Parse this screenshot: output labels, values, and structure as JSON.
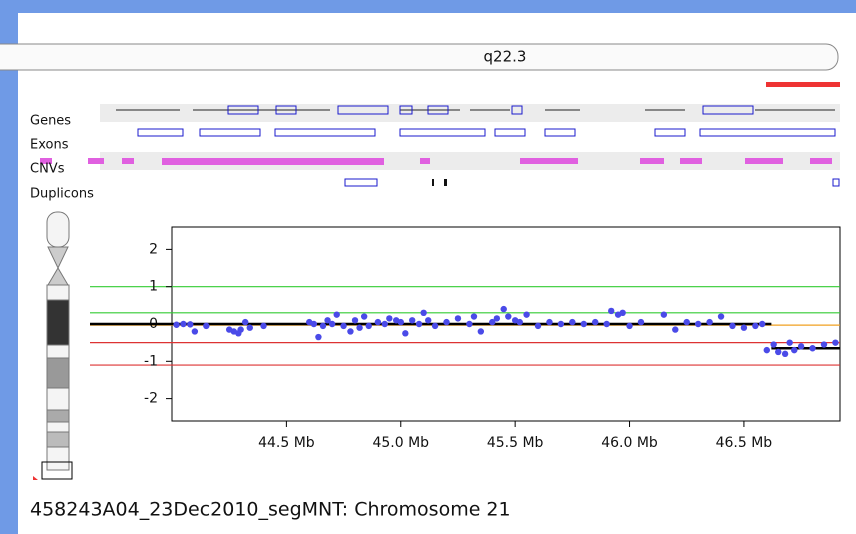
{
  "header": {
    "band": "q22.3"
  },
  "tracks": [
    "Genes",
    "Exons",
    "CNVs",
    "Duplicons"
  ],
  "caption": "458243A04_23Dec2010_segMNT: Chromosome 21",
  "chart_data": {
    "type": "scatter",
    "color": "#4a4ae8",
    "x": [
      44.02,
      44.05,
      44.08,
      44.1,
      44.15,
      44.25,
      44.27,
      44.29,
      44.3,
      44.32,
      44.34,
      44.4,
      44.6,
      44.62,
      44.64,
      44.66,
      44.68,
      44.7,
      44.72,
      44.75,
      44.78,
      44.8,
      44.82,
      44.84,
      44.86,
      44.9,
      44.93,
      44.95,
      44.98,
      45.0,
      45.02,
      45.05,
      45.08,
      45.1,
      45.12,
      45.15,
      45.2,
      45.25,
      45.3,
      45.32,
      45.35,
      45.4,
      45.42,
      45.45,
      45.47,
      45.5,
      45.52,
      45.55,
      45.6,
      45.65,
      45.7,
      45.75,
      45.8,
      45.85,
      45.9,
      45.92,
      45.95,
      45.97,
      46.0,
      46.05,
      46.15,
      46.2,
      46.25,
      46.3,
      46.35,
      46.4,
      46.45,
      46.5,
      46.55,
      46.58,
      46.6,
      46.63,
      46.65,
      46.68,
      46.7,
      46.72,
      46.75,
      46.8,
      46.85,
      46.9
    ],
    "values": [
      -0.02,
      0.0,
      -0.01,
      -0.2,
      -0.05,
      -0.15,
      -0.2,
      -0.25,
      -0.15,
      0.05,
      -0.1,
      -0.05,
      0.05,
      0.0,
      -0.35,
      -0.05,
      0.1,
      0.0,
      0.25,
      -0.05,
      -0.2,
      0.1,
      -0.1,
      0.2,
      -0.05,
      0.05,
      0.0,
      0.15,
      0.1,
      0.05,
      -0.25,
      0.1,
      0.0,
      0.3,
      0.1,
      -0.05,
      0.05,
      0.15,
      0.0,
      0.2,
      -0.2,
      0.05,
      0.15,
      0.4,
      0.2,
      0.1,
      0.05,
      0.25,
      -0.05,
      0.05,
      0.0,
      0.05,
      0.0,
      0.05,
      0.0,
      0.35,
      0.25,
      0.3,
      -0.05,
      0.05,
      0.25,
      -0.15,
      0.05,
      0.0,
      0.05,
      0.2,
      -0.05,
      -0.1,
      -0.05,
      0.0,
      -0.7,
      -0.55,
      -0.75,
      -0.8,
      -0.5,
      -0.7,
      -0.6,
      -0.65,
      -0.55,
      -0.5
    ],
    "xlim": [
      44.0,
      46.92
    ],
    "ylim": [
      -2.6,
      2.6
    ],
    "xticks": [
      {
        "value": 44.5,
        "label": "44.5 Mb"
      },
      {
        "value": 45.0,
        "label": "45.0 Mb"
      },
      {
        "value": 45.5,
        "label": "45.5 Mb"
      },
      {
        "value": 46.0,
        "label": "46.0 Mb"
      },
      {
        "value": 46.5,
        "label": "46.5 Mb"
      }
    ],
    "yticks": [
      2,
      1,
      0,
      -1,
      -2
    ],
    "reference_lines": [
      {
        "value": 1,
        "color": "#33cc33"
      },
      {
        "value": 0.3,
        "color": "#33cc33"
      },
      {
        "value": -0.5,
        "color": "#dd3333"
      },
      {
        "value": -1.1,
        "color": "#dd3333"
      },
      {
        "value": -0.03,
        "color": "#f0a020"
      }
    ],
    "segments": [
      {
        "x": [
          44.0,
          46.62
        ],
        "value": 0
      },
      {
        "x": [
          46.62,
          46.92
        ],
        "value": -0.65
      }
    ]
  }
}
